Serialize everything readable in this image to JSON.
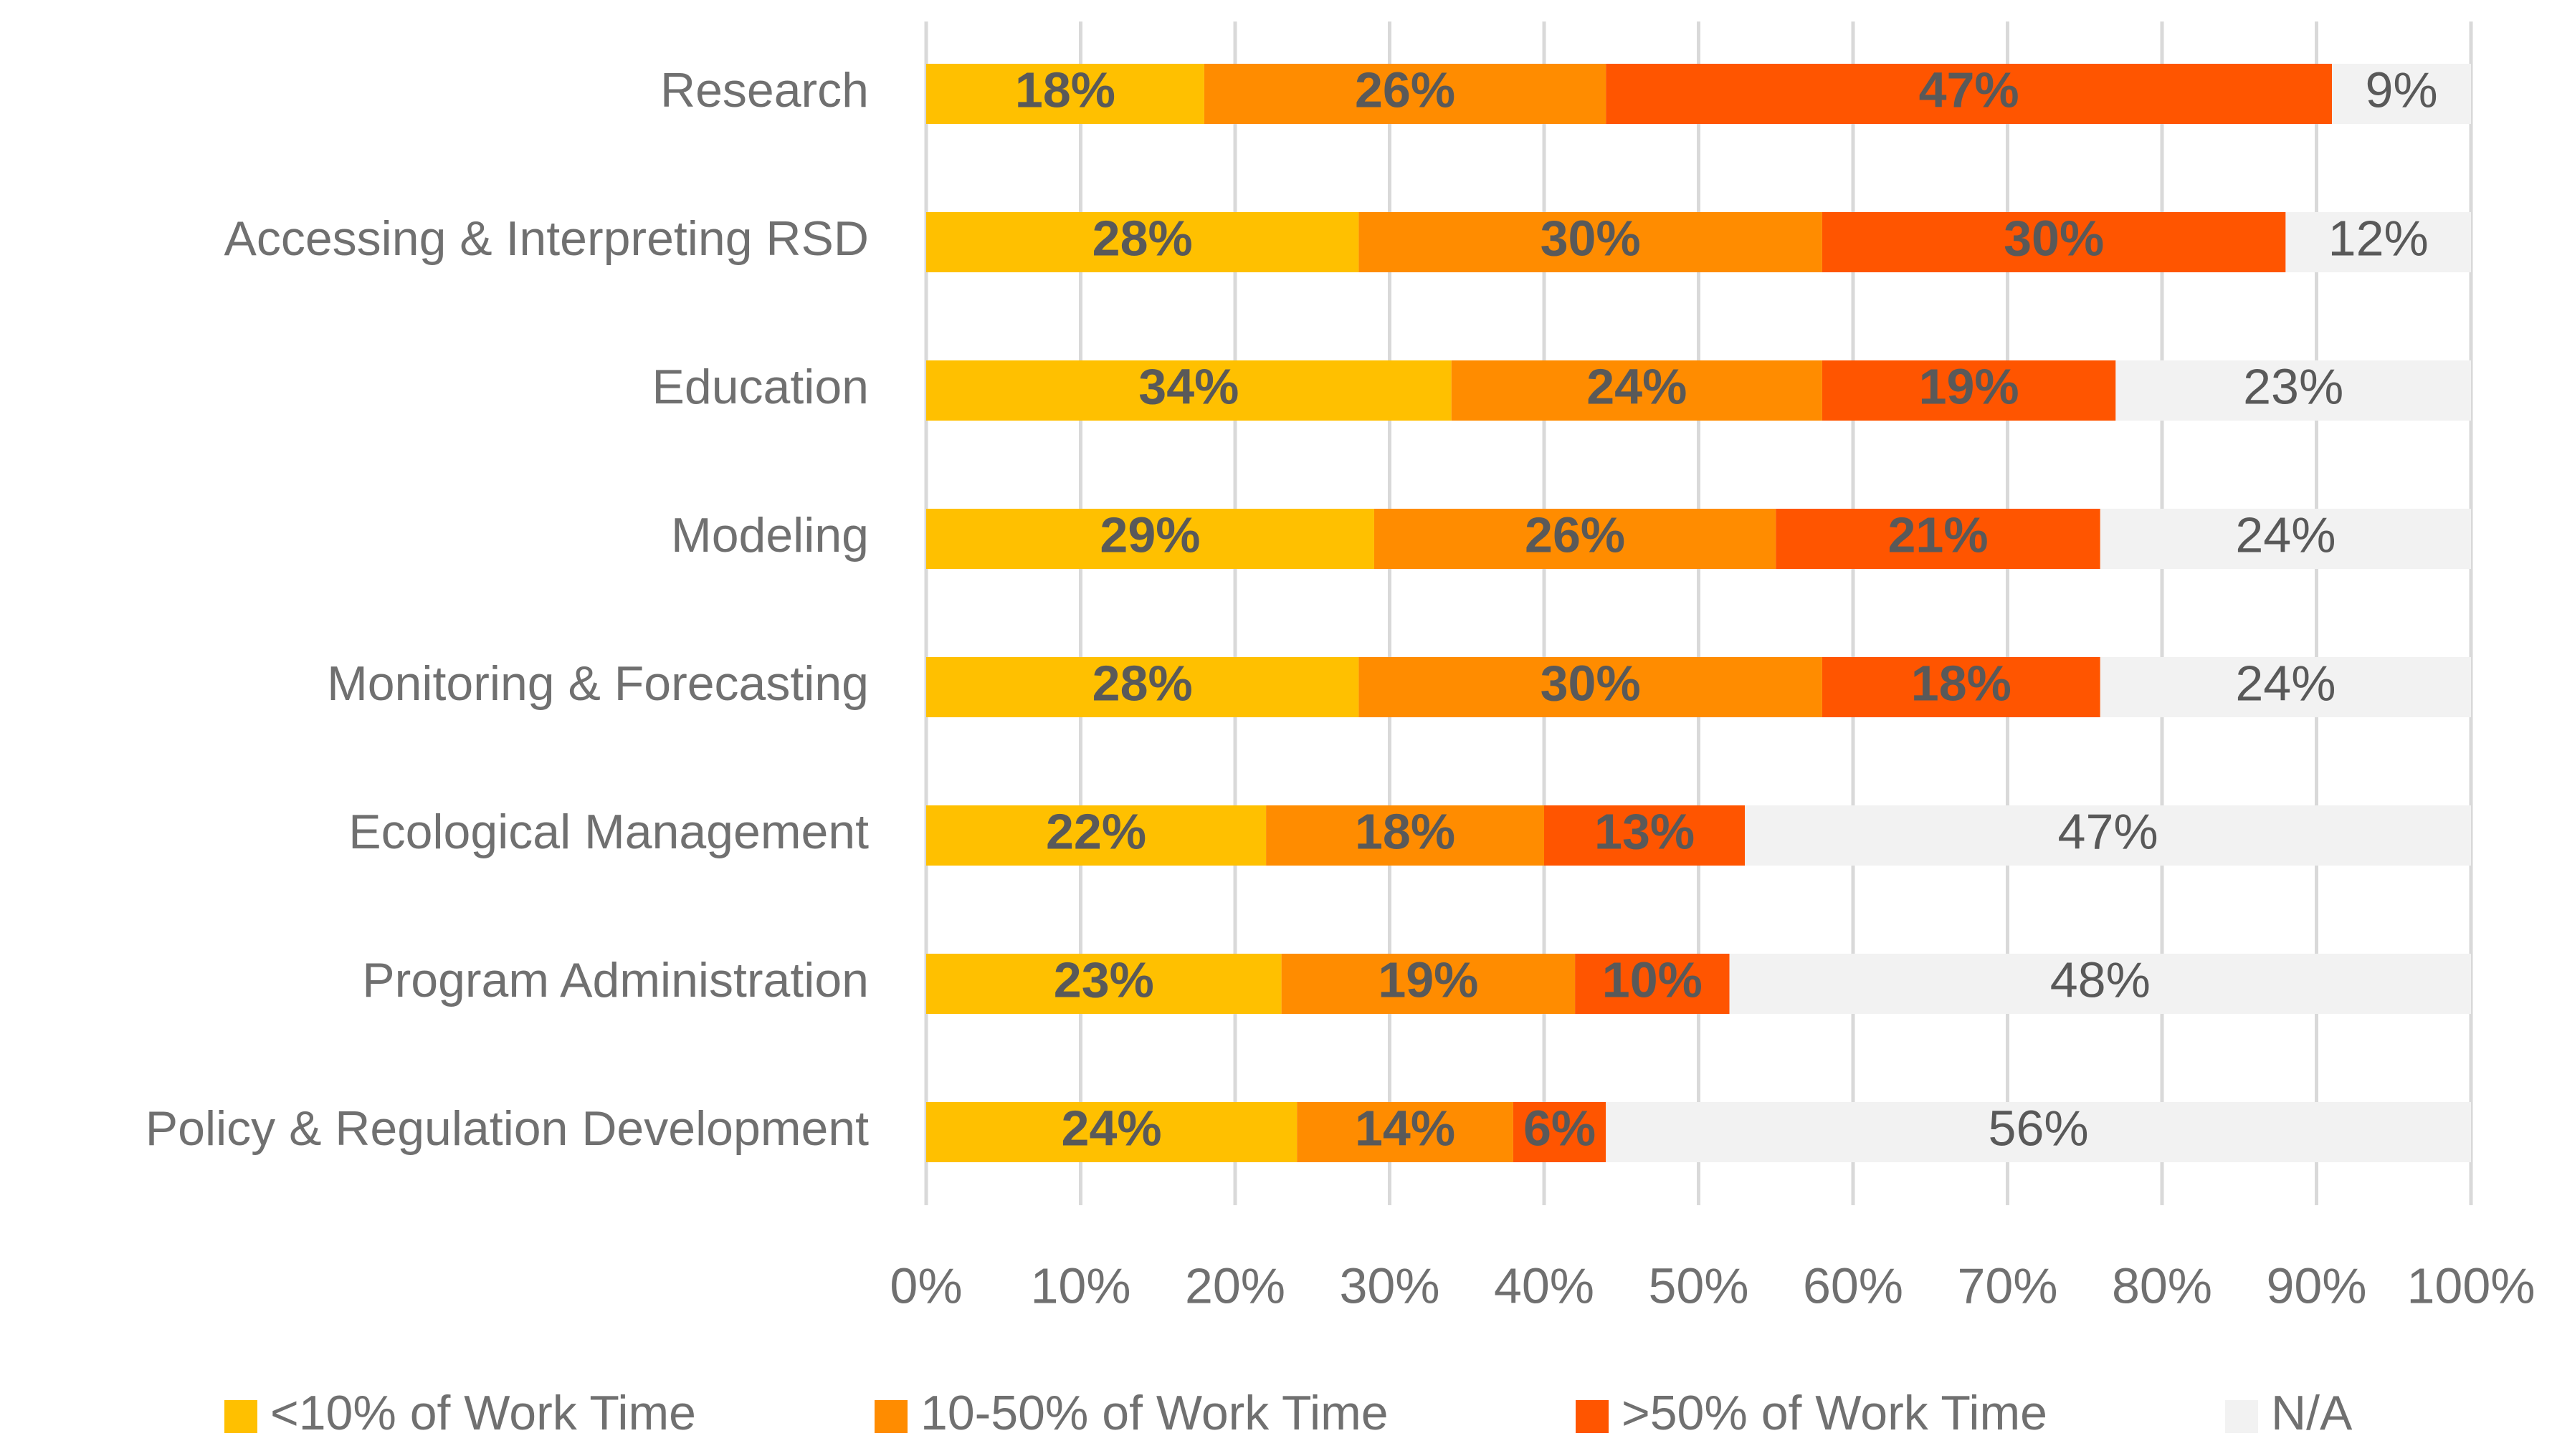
{
  "chart_data": {
    "type": "bar",
    "orientation": "horizontal",
    "stacked": true,
    "title": "",
    "xlabel": "",
    "ylabel": "",
    "xlim": [
      0,
      100
    ],
    "x_ticks": [
      0,
      10,
      20,
      30,
      40,
      50,
      60,
      70,
      80,
      90,
      100
    ],
    "x_tick_labels": [
      "0%",
      "10%",
      "20%",
      "30%",
      "40%",
      "50%",
      "60%",
      "70%",
      "80%",
      "90%",
      "100%"
    ],
    "grid": "vertical",
    "legend_position": "bottom",
    "categories": [
      "Research",
      "Accessing & Interpreting RSD",
      "Education",
      "Modeling",
      "Monitoring & Forecasting",
      "Ecological Management",
      "Program Administration",
      "Policy & Regulation Development"
    ],
    "series": [
      {
        "name": "<10% of Work Time",
        "color": "#FFC000",
        "label_color": "#595959",
        "label_bold": true,
        "values": [
          18,
          28,
          34,
          29,
          28,
          22,
          23,
          24
        ],
        "labels": [
          "18%",
          "28%",
          "34%",
          "29%",
          "28%",
          "22%",
          "23%",
          "24%"
        ]
      },
      {
        "name": "10-50% of Work Time",
        "color": "#FF8C00",
        "label_color": "#595959",
        "label_bold": true,
        "values": [
          26,
          30,
          24,
          26,
          30,
          18,
          19,
          14
        ],
        "labels": [
          "26%",
          "30%",
          "24%",
          "26%",
          "30%",
          "18%",
          "19%",
          "14%"
        ]
      },
      {
        "name": ">50% of Work Time",
        "color": "#FF5500",
        "label_color": "#595959",
        "label_bold": true,
        "values": [
          47,
          30,
          19,
          21,
          18,
          13,
          10,
          6
        ],
        "labels": [
          "47%",
          "30%",
          "19%",
          "21%",
          "18%",
          "13%",
          "10%",
          "6%"
        ]
      },
      {
        "name": "N/A",
        "color": "#F2F2F2",
        "label_color": "#595959",
        "label_bold": false,
        "values": [
          9,
          12,
          23,
          24,
          24,
          47,
          48,
          56
        ],
        "labels": [
          "9%",
          "12%",
          "23%",
          "24%",
          "24%",
          "47%",
          "48%",
          "56%"
        ]
      }
    ],
    "colors": {
      "text": "#707070",
      "gridline": "#D9D9D9"
    }
  }
}
